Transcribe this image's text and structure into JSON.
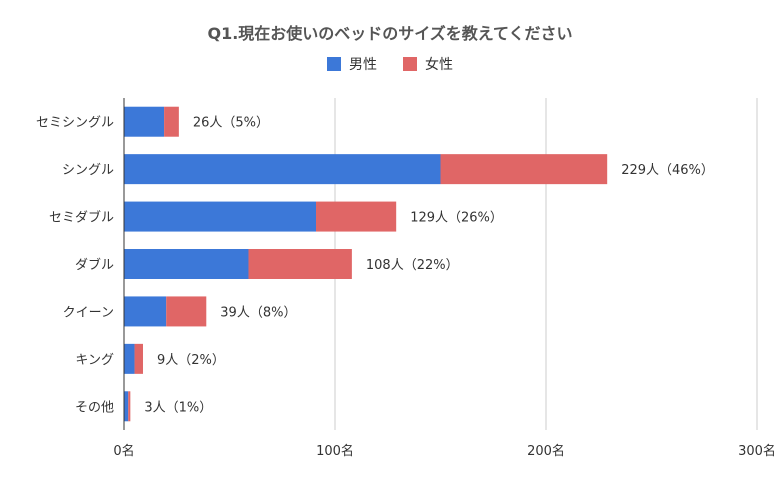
{
  "chart_data": {
    "type": "bar",
    "orientation": "horizontal",
    "stacked": true,
    "title": "Q1.現在お使いのベッドのサイズを教えてください",
    "categories": [
      "セミシングル",
      "シングル",
      "セミダブル",
      "ダブル",
      "クイーン",
      "キング",
      "その他"
    ],
    "series": [
      {
        "name": "男性",
        "color": "#3c78d8",
        "values": [
          19,
          150,
          91,
          59,
          20,
          5,
          2
        ]
      },
      {
        "name": "女性",
        "color": "#e06666",
        "values": [
          7,
          79,
          38,
          49,
          19,
          4,
          1
        ]
      }
    ],
    "data_labels": [
      "26人（5%）",
      "229人（46%）",
      "129人（26%）",
      "108人（22%）",
      "39人（8%）",
      "9人（2%）",
      "3人（1%）"
    ],
    "x_ticks": [
      0,
      100,
      200,
      300
    ],
    "x_tick_labels": [
      "0名",
      "100名",
      "200名",
      "300名"
    ],
    "xlim": [
      0,
      300
    ],
    "grid": true,
    "legend_position": "top"
  }
}
